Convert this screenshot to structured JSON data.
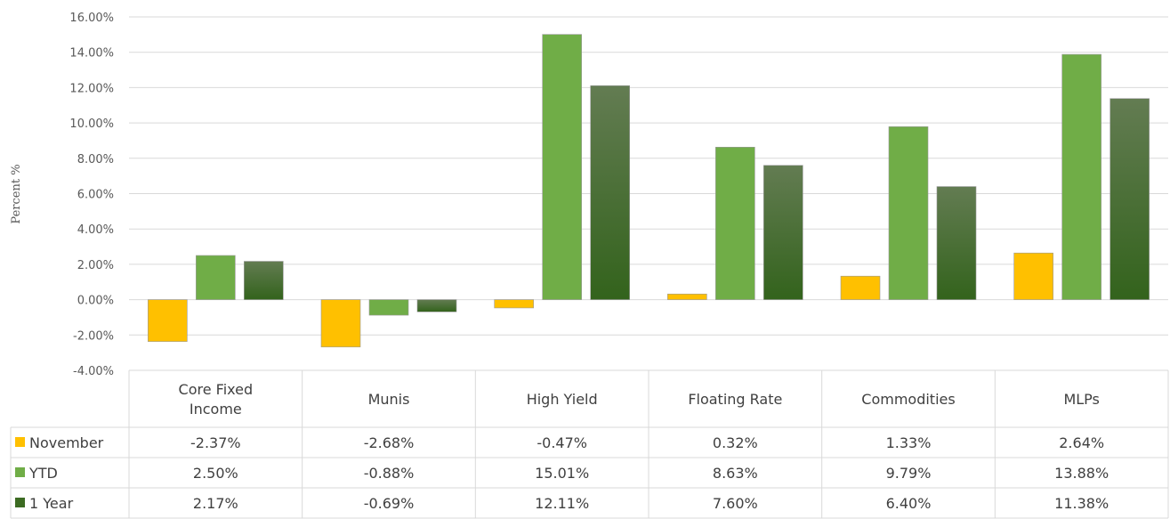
{
  "chart_data": {
    "type": "bar",
    "ylabel": "Percent %",
    "ylim": [
      -4,
      16
    ],
    "yticks": [
      -4,
      -2,
      0,
      2,
      4,
      6,
      8,
      10,
      12,
      14,
      16
    ],
    "ytick_labels": [
      "-4.00%",
      "-2.00%",
      "0.00%",
      "2.00%",
      "4.00%",
      "6.00%",
      "8.00%",
      "10.00%",
      "12.00%",
      "14.00%",
      "16.00%"
    ],
    "categories": [
      [
        "Core Fixed",
        "Income"
      ],
      [
        "Munis"
      ],
      [
        "High Yield"
      ],
      [
        "Floating Rate"
      ],
      [
        "Commodities"
      ],
      [
        "MLPs"
      ]
    ],
    "grid": true,
    "legend": "data-table",
    "series": [
      {
        "name": "November",
        "color": "#FFC000",
        "values": [
          -2.37,
          -2.68,
          -0.47,
          0.32,
          1.33,
          2.64
        ],
        "labels": [
          "-2.37%",
          "-2.68%",
          "-0.47%",
          "0.32%",
          "1.33%",
          "2.64%"
        ]
      },
      {
        "name": "YTD",
        "color": "#70AD47",
        "values": [
          2.5,
          -0.88,
          15.01,
          8.63,
          9.79,
          13.88
        ],
        "labels": [
          "2.50%",
          "-0.88%",
          "15.01%",
          "8.63%",
          "9.79%",
          "13.88%"
        ]
      },
      {
        "name": "1 Year",
        "color": "#3C6B22",
        "values": [
          2.17,
          -0.69,
          12.11,
          7.6,
          6.4,
          11.38
        ],
        "labels": [
          "2.17%",
          "-0.69%",
          "12.11%",
          "7.60%",
          "6.40%",
          "11.38%"
        ]
      }
    ]
  }
}
